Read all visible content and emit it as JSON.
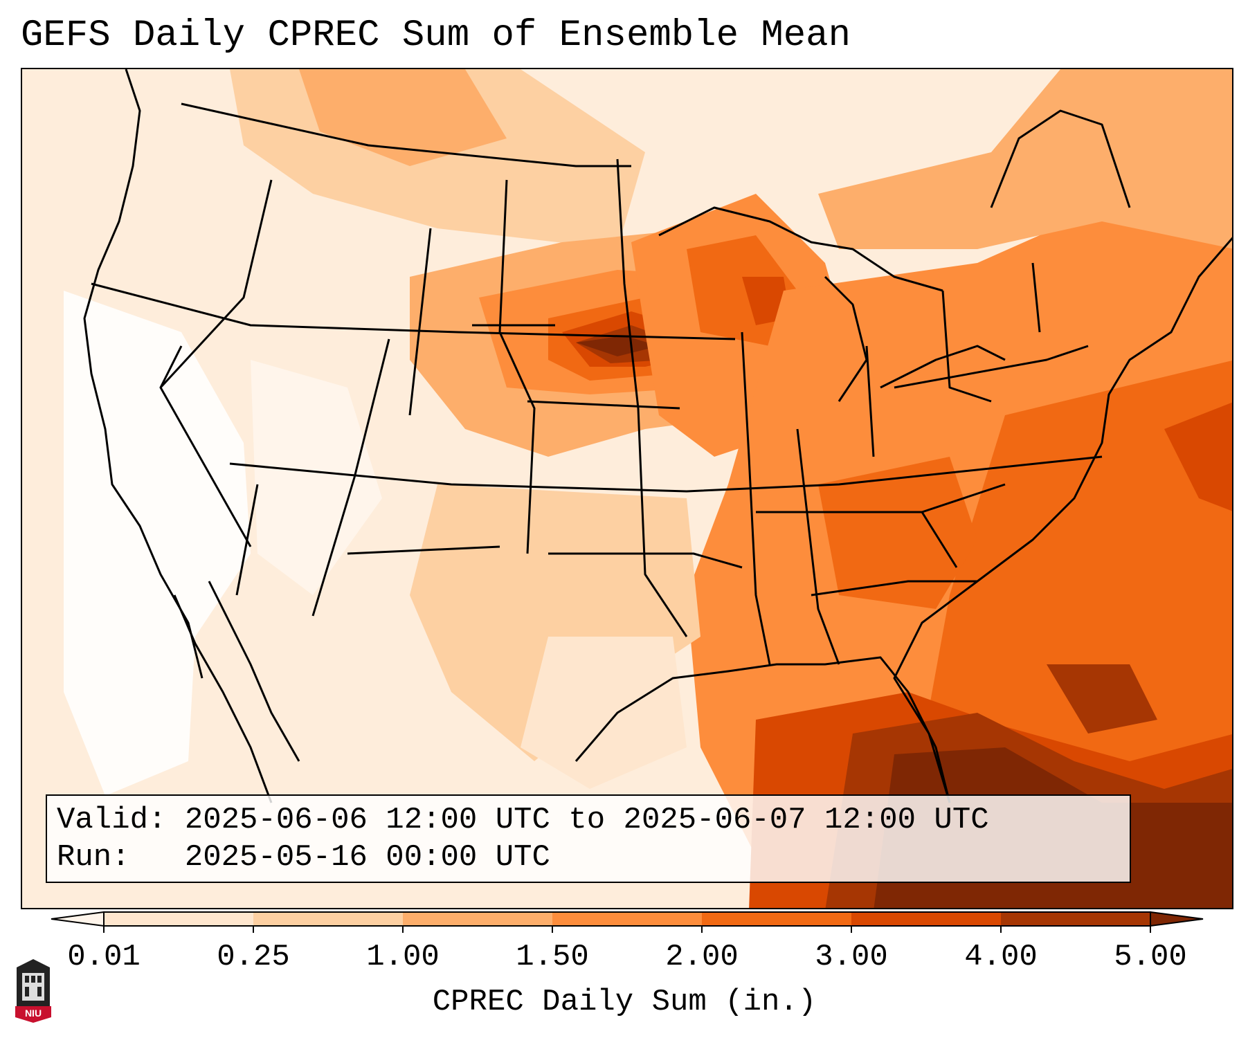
{
  "title": "GEFS Daily CPREC Sum of Ensemble Mean",
  "info": {
    "valid_label": "Valid:",
    "valid_value": "2025-06-06 12:00 UTC to 2025-06-07 12:00 UTC",
    "run_label": "Run:",
    "run_value": "2025-05-16 00:00 UTC"
  },
  "colorbar": {
    "label": "CPREC Daily Sum (in.)",
    "ticks": [
      "0.01",
      "0.25",
      "1.00",
      "1.50",
      "2.00",
      "3.00",
      "4.00",
      "5.00"
    ],
    "colors": [
      "#fee6ce",
      "#fdd0a2",
      "#fdae6b",
      "#fd8d3c",
      "#f16913",
      "#d94801",
      "#a63603"
    ],
    "under_color": "#fff5eb",
    "over_color": "#7f2704"
  },
  "logo": {
    "text": "NIU",
    "color": "#c8102e"
  }
}
